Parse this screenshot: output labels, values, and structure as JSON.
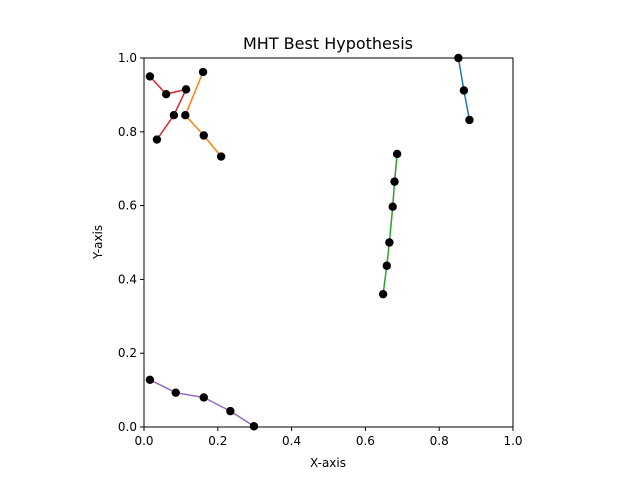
{
  "chart_data": {
    "type": "scatter",
    "title": "MHT Best Hypothesis",
    "xlabel": "X-axis",
    "ylabel": "Y-axis",
    "xlim": [
      0.0,
      1.0
    ],
    "ylim": [
      0.0,
      1.0
    ],
    "xticks": [
      "0.0",
      "0.2",
      "0.4",
      "0.6",
      "0.8",
      "1.0"
    ],
    "yticks": [
      "0.0",
      "0.2",
      "0.4",
      "0.6",
      "0.8",
      "1.0"
    ],
    "grid": false,
    "legend": "none",
    "point_color": "#000000",
    "tracks": [
      {
        "color": "#1f77b4",
        "points": [
          [
            0.852,
            1.0
          ],
          [
            0.867,
            0.912
          ],
          [
            0.882,
            0.832
          ]
        ]
      },
      {
        "color": "#ff7f0e",
        "points": [
          [
            0.16,
            0.962
          ],
          [
            0.112,
            0.845
          ],
          [
            0.162,
            0.79
          ],
          [
            0.209,
            0.733
          ]
        ]
      },
      {
        "color": "#2ca02c",
        "points": [
          [
            0.648,
            0.36
          ],
          [
            0.658,
            0.437
          ],
          [
            0.665,
            0.5
          ],
          [
            0.674,
            0.597
          ],
          [
            0.679,
            0.665
          ],
          [
            0.686,
            0.74
          ]
        ]
      },
      {
        "color": "#d62728",
        "points": [
          [
            0.016,
            0.95
          ],
          [
            0.06,
            0.902
          ],
          [
            0.114,
            0.915
          ],
          [
            0.081,
            0.845
          ],
          [
            0.035,
            0.779
          ]
        ]
      },
      {
        "color": "#9467bd",
        "points": [
          [
            0.016,
            0.128
          ],
          [
            0.086,
            0.093
          ],
          [
            0.162,
            0.08
          ],
          [
            0.234,
            0.043
          ],
          [
            0.298,
            0.002
          ]
        ]
      }
    ]
  }
}
